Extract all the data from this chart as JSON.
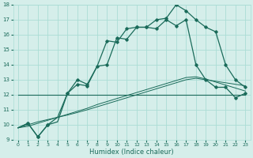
{
  "xlabel": "Humidex (Indice chaleur)",
  "x": [
    0,
    1,
    2,
    3,
    4,
    5,
    6,
    7,
    8,
    9,
    10,
    11,
    12,
    13,
    14,
    15,
    16,
    17,
    18,
    19,
    20,
    21,
    22,
    23
  ],
  "line_main": [
    9.8,
    10.1,
    9.2,
    10.0,
    10.2,
    12.1,
    13.0,
    12.7,
    13.9,
    14.0,
    15.8,
    15.7,
    16.5,
    16.5,
    17.0,
    17.1,
    18.0,
    17.6,
    17.0,
    16.5,
    16.2,
    14.0,
    13.0,
    12.5
  ],
  "line_second": [
    9.8,
    10.1,
    9.2,
    10.0,
    10.5,
    12.1,
    12.7,
    12.6,
    13.9,
    15.6,
    15.5,
    16.4,
    16.5,
    16.5,
    16.4,
    17.0,
    16.6,
    17.0,
    14.0,
    13.0,
    12.5,
    12.5,
    11.8,
    12.1
  ],
  "line_flat": [
    12.0,
    12.0,
    12.0,
    12.0,
    12.0,
    12.0,
    12.0,
    12.0,
    12.0,
    12.0,
    12.0,
    12.0,
    12.0,
    12.0,
    12.0,
    12.0,
    12.0,
    12.0,
    12.0,
    12.0,
    12.0,
    12.0,
    12.0,
    12.0
  ],
  "line_diag1": [
    9.8,
    9.9,
    10.1,
    10.3,
    10.5,
    10.65,
    10.82,
    11.0,
    11.2,
    11.4,
    11.6,
    11.8,
    12.0,
    12.2,
    12.4,
    12.6,
    12.8,
    13.0,
    13.1,
    13.0,
    12.9,
    12.8,
    12.7,
    12.6
  ],
  "line_diag2": [
    9.8,
    10.0,
    10.2,
    10.35,
    10.5,
    10.7,
    10.9,
    11.1,
    11.35,
    11.55,
    11.75,
    11.95,
    12.15,
    12.35,
    12.55,
    12.75,
    12.95,
    13.15,
    13.2,
    13.05,
    12.85,
    12.65,
    12.45,
    12.25
  ],
  "line_color": "#1a6b5a",
  "bg_color": "#d5eeea",
  "grid_color": "#aaddd5",
  "ylim": [
    9,
    18
  ],
  "yticks": [
    9,
    10,
    11,
    12,
    13,
    14,
    15,
    16,
    17,
    18
  ],
  "xticks": [
    0,
    1,
    2,
    3,
    4,
    5,
    6,
    7,
    8,
    9,
    10,
    11,
    12,
    13,
    14,
    15,
    16,
    17,
    18,
    19,
    20,
    21,
    22,
    23
  ],
  "marker_x_main": [
    1,
    2,
    3,
    5,
    6,
    7,
    8,
    9,
    10,
    11,
    12,
    13,
    14,
    15,
    16,
    17,
    18,
    19,
    20,
    21,
    22,
    23
  ],
  "marker_x_second": [
    1,
    2,
    3,
    5,
    6,
    7,
    9,
    10,
    11,
    12,
    13,
    14,
    15,
    16,
    17,
    18,
    19,
    20,
    21,
    22,
    23
  ]
}
